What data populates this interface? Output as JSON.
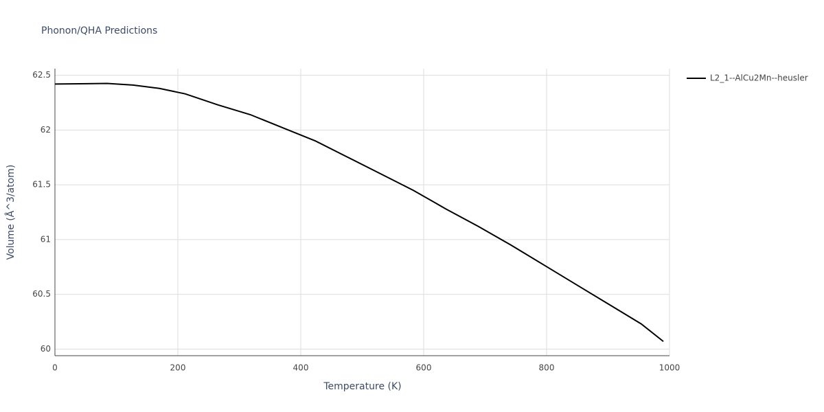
{
  "chart_data": {
    "type": "line",
    "title": "Phonon/QHA Predictions",
    "x_label": "Temperature (K)",
    "y_label": "Volume (Å^3/atom)",
    "x": [
      0,
      85,
      127,
      170,
      212,
      265,
      318,
      371,
      424,
      477,
      530,
      583,
      636,
      689,
      742,
      795,
      848,
      901,
      954,
      990
    ],
    "series": [
      {
        "name": "L2_1--AlCu2Mn--heusler",
        "color": "#000000",
        "values": [
          62.42,
          62.425,
          62.41,
          62.38,
          62.33,
          62.23,
          62.14,
          62.02,
          61.9,
          61.75,
          61.6,
          61.45,
          61.28,
          61.12,
          60.95,
          60.77,
          60.59,
          60.41,
          60.23,
          60.07
        ]
      }
    ],
    "xlim": [
      0,
      1000
    ],
    "xticks": [
      0,
      200,
      400,
      600,
      800,
      1000
    ],
    "ylim": [
      59.94,
      62.56
    ],
    "yticks": [
      60,
      60.5,
      61,
      61.5,
      62,
      62.5
    ],
    "grid": true,
    "legend": "right"
  }
}
